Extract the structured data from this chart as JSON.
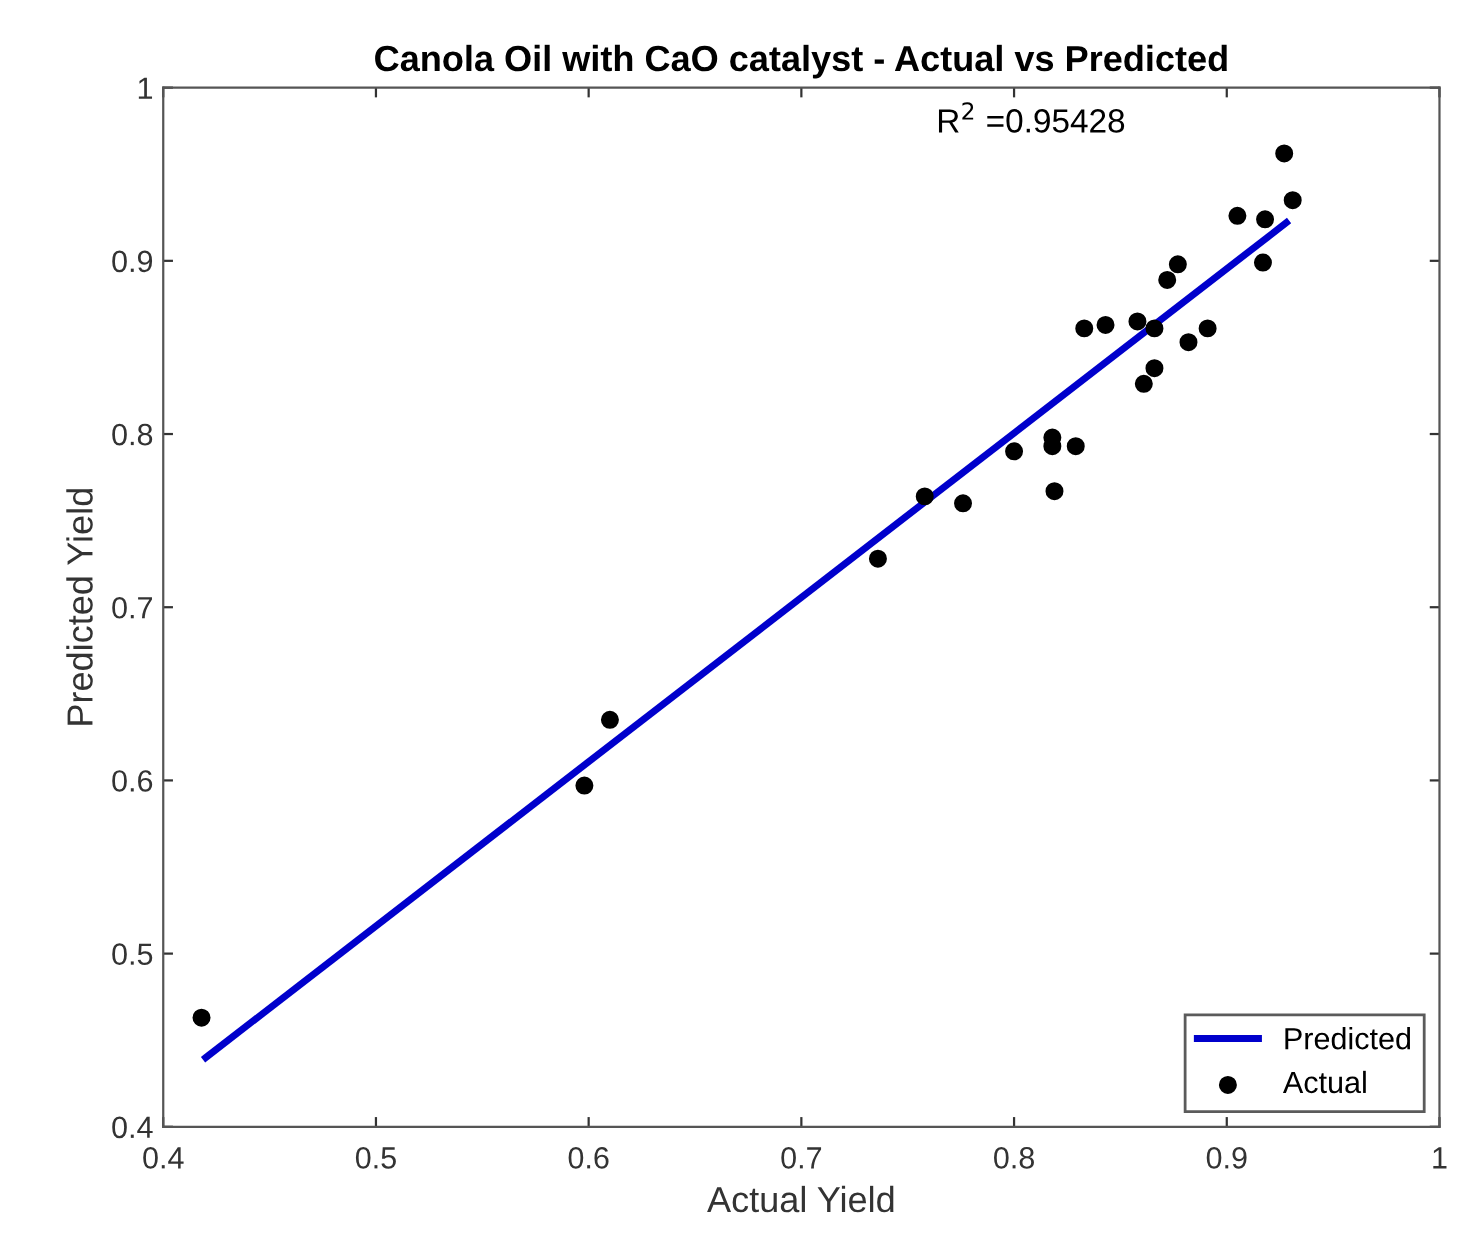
{
  "chart_data": {
    "type": "scatter",
    "title": "Canola Oil with CaO catalyst - Actual vs Predicted",
    "xlabel": "Actual Yield",
    "ylabel": "Predicted Yield",
    "annotations": [
      "R$^{2}$ =0.95428"
    ],
    "xlim": [
      0.4,
      1
    ],
    "ylim": [
      0.4,
      1
    ],
    "xticks": [
      0.4,
      0.5,
      0.6,
      0.7,
      0.8,
      0.9,
      1
    ],
    "yticks": [
      0.4,
      0.5,
      0.6,
      0.7,
      0.8,
      0.9,
      1
    ],
    "grid": false,
    "legend": "bottom right",
    "series": [
      {
        "name": "Predicted",
        "type": "line",
        "color": "#0000cc",
        "marker": "none",
        "line_style": "solid",
        "x": [
          0.42,
          0.928
        ],
        "values": [
          0.44,
          0.922
        ]
      },
      {
        "name": "Actual",
        "color": "#000000",
        "marker": "circle",
        "x": [
          0.418,
          0.598,
          0.61,
          0.736,
          0.758,
          0.776,
          0.8,
          0.818,
          0.818,
          0.829,
          0.819,
          0.833,
          0.843,
          0.858,
          0.866,
          0.866,
          0.861,
          0.872,
          0.877,
          0.882,
          0.891,
          0.905,
          0.918,
          0.917,
          0.931,
          0.927
        ],
        "values": [
          0.463,
          0.597,
          0.635,
          0.728,
          0.764,
          0.76,
          0.79,
          0.798,
          0.793,
          0.793,
          0.767,
          0.861,
          0.863,
          0.865,
          0.861,
          0.838,
          0.829,
          0.889,
          0.898,
          0.853,
          0.861,
          0.926,
          0.924,
          0.899,
          0.935,
          0.962
        ]
      }
    ]
  }
}
